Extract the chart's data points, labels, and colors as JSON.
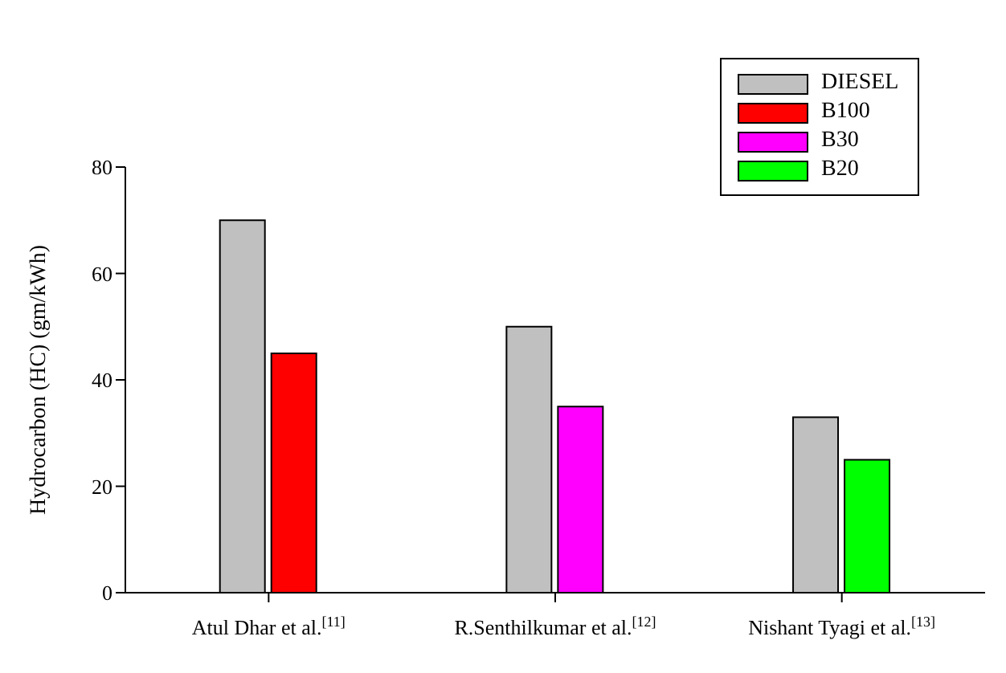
{
  "chart_data": {
    "type": "bar",
    "ylabel": "Hydrocarbon (HC) (gm/kWh)",
    "categories": [
      "Atul Dhar et al.$^{[11]}$",
      "R.Senthilkumar et al.$^{[12]}$",
      "Nishant Tyagi et al.$^{[13]}$"
    ],
    "series": [
      {
        "name": "DIESEL",
        "color": "#c0c0c0",
        "values": [
          70,
          50,
          33
        ]
      },
      {
        "name": "B100",
        "color": "#ff0000",
        "values": [
          45,
          null,
          null
        ]
      },
      {
        "name": "B30",
        "color": "#ff00ff",
        "values": [
          null,
          35,
          null
        ]
      },
      {
        "name": "B20",
        "color": "#00ff00",
        "values": [
          null,
          null,
          25
        ]
      }
    ],
    "ylim": [
      0,
      80
    ],
    "yticks": [
      0,
      20,
      40,
      60,
      80
    ],
    "grid": false,
    "legend": "top right"
  }
}
